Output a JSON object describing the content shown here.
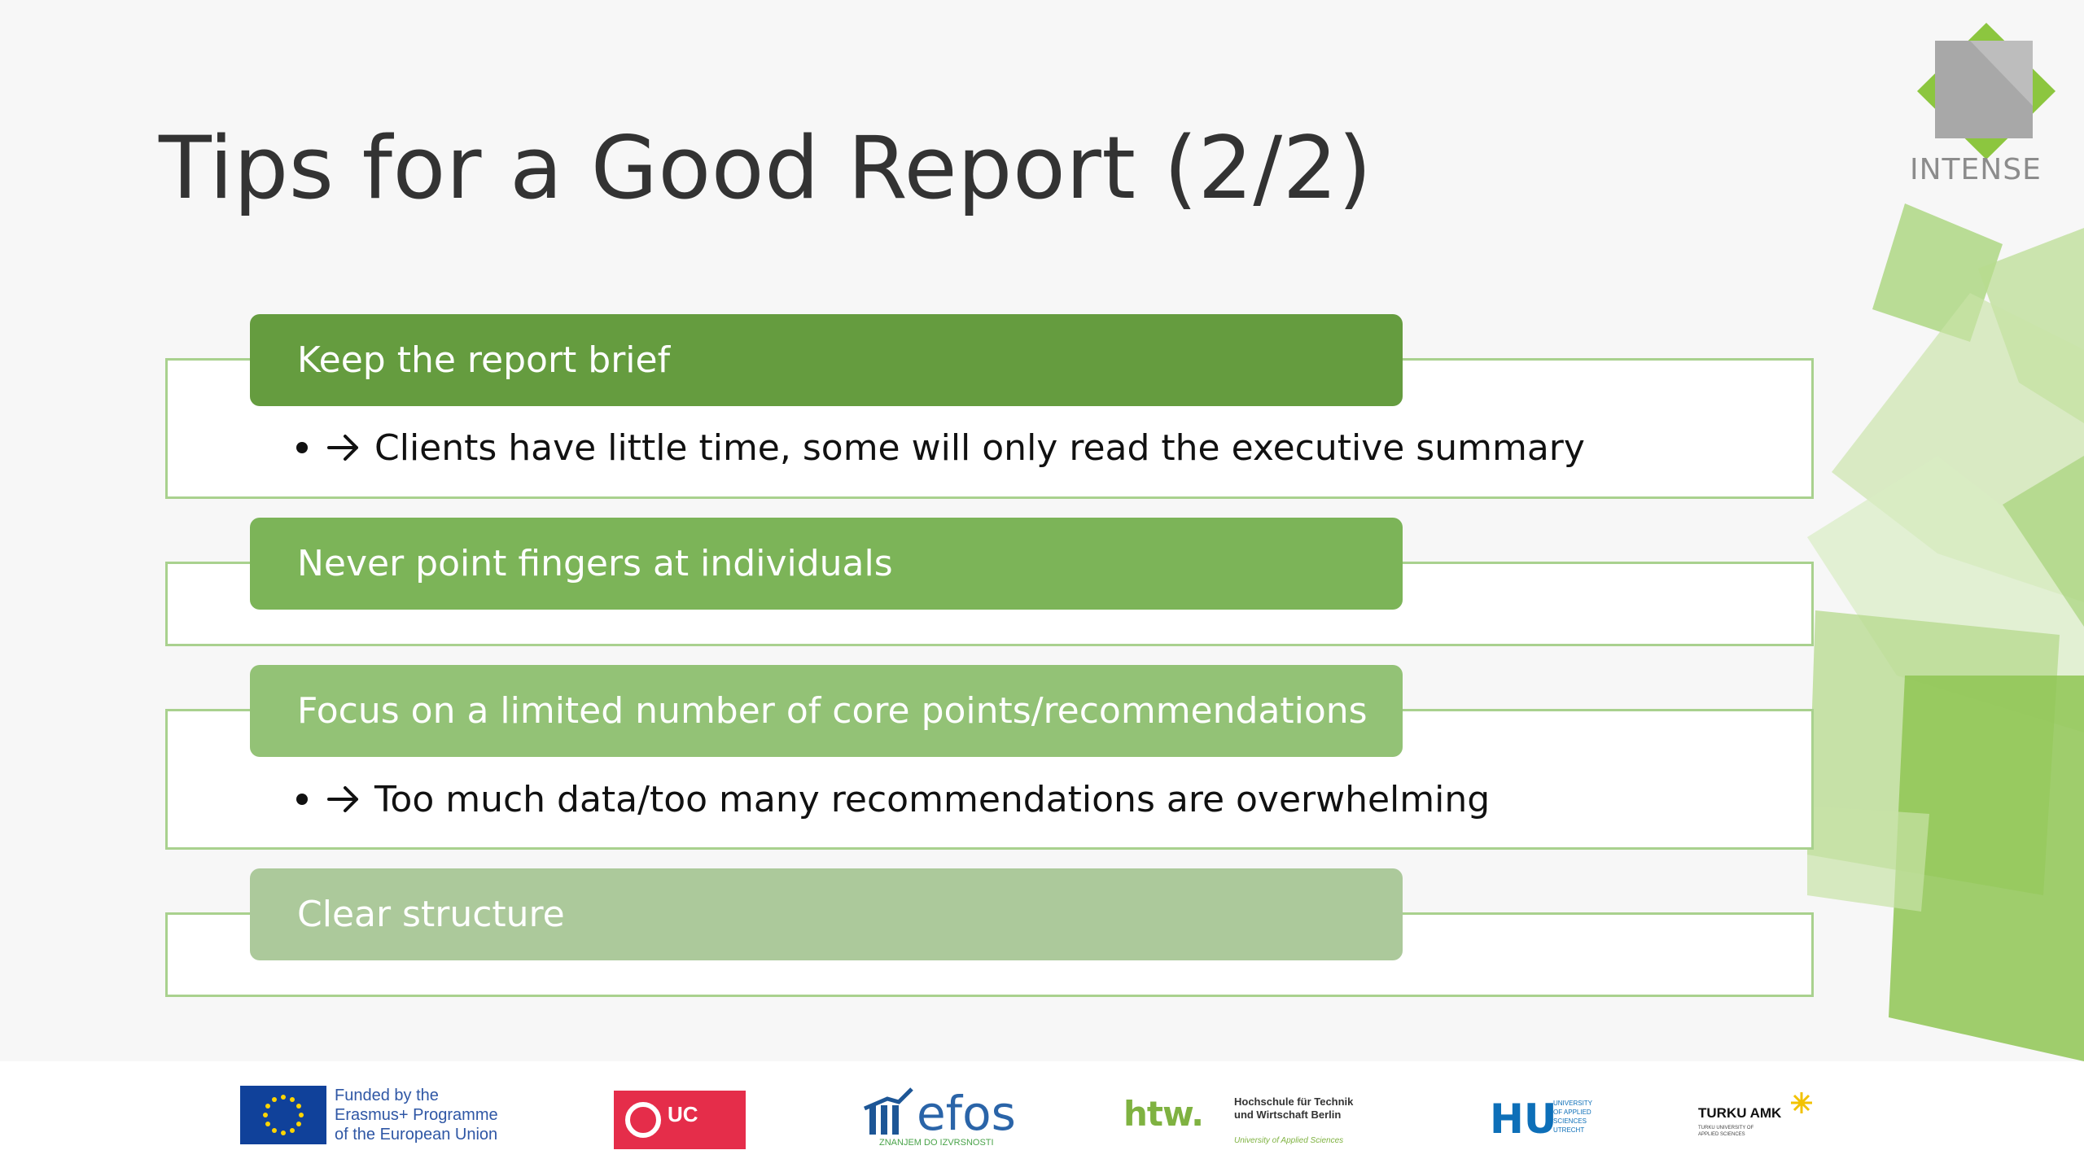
{
  "slide": {
    "title": "Tips for a Good Report (2/2)",
    "brand": "INTENSE",
    "sections": [
      {
        "label": "Keep the report brief",
        "bullet": "Clients have little time, some will only read the executive summary",
        "color": "#659c3f"
      },
      {
        "label": "Never point fingers at individuals",
        "bullet": "",
        "color": "#7cb458"
      },
      {
        "label": "Focus on a limited number of core points/recommendations",
        "bullet": "Too much data/too many recommendations are overwhelming",
        "color": "#93c276"
      },
      {
        "label": "Clear structure",
        "bullet": "",
        "color": "#acc99b"
      }
    ],
    "colors": {
      "box_border": "#a9d18e",
      "accent_green": "#7cb458"
    }
  },
  "footer": {
    "eu_text": "Funded by the\nErasmus+ Programme\nof the European Union",
    "uc_text": "UC",
    "efos_text": "efos",
    "efos_sub": "ZNANJEM DO IZVRSNOSTI",
    "htw_mark": "htw.",
    "htw_text": "Hochschule für Technik\nund Wirtschaft Berlin",
    "htw_sub": "University of Applied Sciences",
    "hu_mark": "HU",
    "hu_sub": "UNIVERSITY\nOF APPLIED\nSCIENCES\nUTRECHT",
    "turku_text": "TURKU AMK",
    "turku_sub": "TURKU UNIVERSITY OF\nAPPLIED SCIENCES"
  }
}
